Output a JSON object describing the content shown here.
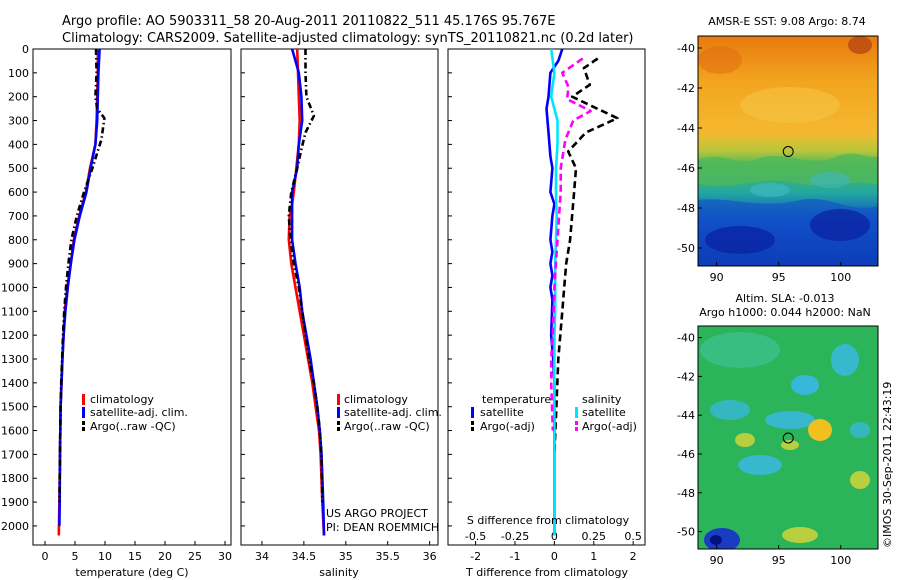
{
  "titles": {
    "line1": "Argo profile: AO 5903311_58 20-Aug-2011 20110822_511 45.176S 95.767E",
    "line2": "Climatology: CARS2009. Satellite-adjusted climatology: synTS_20110821.nc (0.2d later)"
  },
  "footer": {
    "project": "US ARGO PROJECT",
    "pi": "PI: DEAN ROEMMICH",
    "credit": "©IMOS 30-Sep-2011 22:43:19"
  },
  "colors": {
    "climatology": "#ff0000",
    "satellite": "#0000ff",
    "argo": "#000000",
    "salinity_satellite": "#00e5ff",
    "salinity_argo": "#ff00ff"
  },
  "chart_data": [
    {
      "type": "line",
      "xlabel": "temperature (deg C)",
      "ylabel": "",
      "xlim": [
        -2,
        31
      ],
      "ylim": [
        2080,
        0
      ],
      "xticks": [
        "0",
        "5",
        "10",
        "15",
        "20",
        "25",
        "30"
      ],
      "xtick_values": [
        0,
        5,
        10,
        15,
        20,
        25,
        30
      ],
      "yticks": [
        "0",
        "100",
        "200",
        "300",
        "400",
        "500",
        "600",
        "700",
        "800",
        "900",
        "1000",
        "1100",
        "1200",
        "1300",
        "1400",
        "1500",
        "1600",
        "1700",
        "1800",
        "1900",
        "2000"
      ],
      "legend": [
        "climatology",
        "satellite-adj. clim.",
        "Argo(..raw -QC)"
      ],
      "series": [
        {
          "name": "climatology",
          "color": "#ff0000",
          "dash": "",
          "x": [
            8.8,
            8.8,
            8.7,
            8.6,
            8.5,
            8.4,
            7.5,
            6.8,
            5.7,
            4.8,
            4.3,
            3.7,
            3.3,
            3.1,
            2.9,
            2.75,
            2.6,
            2.55,
            2.5,
            2.4,
            2.3
          ],
          "y": [
            0,
            100,
            200,
            300,
            350,
            400,
            500,
            600,
            700,
            800,
            900,
            1000,
            1100,
            1200,
            1300,
            1400,
            1500,
            1600,
            1700,
            1900,
            2040
          ]
        },
        {
          "name": "satellite-adj. clim.",
          "color": "#0000ff",
          "dash": "",
          "x": [
            9.1,
            9.0,
            8.9,
            8.8,
            8.7,
            8.4,
            7.6,
            6.9,
            5.8,
            4.9,
            4.3,
            3.8,
            3.4,
            3.1,
            2.9,
            2.75,
            2.6,
            2.55,
            2.5,
            2.45,
            2.4
          ],
          "y": [
            0,
            50,
            100,
            200,
            300,
            400,
            500,
            600,
            700,
            800,
            900,
            1000,
            1100,
            1200,
            1300,
            1400,
            1500,
            1600,
            1700,
            1900,
            2000
          ]
        },
        {
          "name": "Argo(..raw -QC)",
          "color": "#000000",
          "dash": "6,3,1.5,3",
          "x": [
            8.5,
            8.6,
            8.4,
            8.7,
            9.9,
            9.4,
            7.9,
            6.5,
            5.3,
            4.4,
            3.9,
            3.5,
            3.2,
            3.0,
            2.85,
            2.7,
            2.6,
            2.55,
            2.5,
            2.4
          ],
          "y": [
            0,
            100,
            200,
            250,
            290,
            380,
            500,
            600,
            700,
            800,
            900,
            1000,
            1100,
            1200,
            1300,
            1400,
            1500,
            1600,
            1700,
            1900
          ]
        }
      ]
    },
    {
      "type": "line",
      "xlabel": "salinity",
      "ylabel": "",
      "xlim": [
        33.75,
        36.1
      ],
      "ylim": [
        2080,
        0
      ],
      "xticks": [
        "34",
        "34.5",
        "35",
        "35.5",
        "36"
      ],
      "xtick_values": [
        34,
        34.5,
        35,
        35.5,
        36
      ],
      "legend": [
        "climatology",
        "satellite-adj. clim.",
        "Argo(..raw -QC)"
      ],
      "series": [
        {
          "name": "climatology",
          "color": "#ff0000",
          "dash": "",
          "x": [
            34.42,
            34.43,
            34.44,
            34.45,
            34.44,
            34.41,
            34.38,
            34.36,
            34.33,
            34.32,
            34.35,
            34.4,
            34.45,
            34.5,
            34.55,
            34.6,
            34.64,
            34.68,
            34.7,
            34.72,
            34.74
          ],
          "y": [
            0,
            100,
            200,
            300,
            400,
            500,
            600,
            650,
            700,
            800,
            900,
            1000,
            1100,
            1200,
            1300,
            1400,
            1500,
            1600,
            1700,
            1900,
            2040
          ]
        },
        {
          "name": "satellite-adj. clim.",
          "color": "#0000ff",
          "dash": "",
          "x": [
            34.36,
            34.4,
            34.44,
            34.47,
            34.48,
            34.44,
            34.42,
            34.36,
            34.36,
            34.36,
            34.4,
            34.45,
            34.48,
            34.53,
            34.58,
            34.62,
            34.66,
            34.69,
            34.71,
            34.73,
            34.74
          ],
          "y": [
            0,
            50,
            100,
            200,
            300,
            400,
            500,
            600,
            700,
            800,
            900,
            1000,
            1100,
            1200,
            1300,
            1400,
            1500,
            1600,
            1700,
            1900,
            2040
          ]
        },
        {
          "name": "Argo(..raw -QC)",
          "color": "#000000",
          "dash": "6,3,1.5,3",
          "x": [
            34.52,
            34.52,
            34.53,
            34.62,
            34.52,
            34.47,
            34.42,
            34.35,
            34.32,
            34.34,
            34.38,
            34.44,
            34.48,
            34.52,
            34.56,
            34.62,
            34.66,
            34.69,
            34.71,
            34.72
          ],
          "y": [
            0,
            100,
            200,
            280,
            350,
            420,
            500,
            600,
            700,
            800,
            900,
            1000,
            1100,
            1200,
            1300,
            1400,
            1500,
            1600,
            1700,
            1900
          ]
        }
      ]
    },
    {
      "type": "line",
      "xlabel": "T difference from climatology",
      "xlabel_top": "S difference from climatology",
      "ylabel": "",
      "xlim": [
        -2.7,
        2.3
      ],
      "ylim": [
        2080,
        0
      ],
      "xticks": [
        "-2",
        "-1",
        "0",
        "1",
        "2"
      ],
      "xtick_values": [
        -2,
        -1,
        0,
        1,
        2
      ],
      "s_xticks": [
        "-0.5",
        "-0.25",
        "0",
        "0.25",
        "0.5"
      ],
      "s_xtick_values": [
        -0.5,
        -0.25,
        0,
        0.25,
        0.5
      ],
      "legend_headers": [
        "temperature",
        "salinity"
      ],
      "legend": [
        "satellite",
        "Argo(-adj)",
        "satellite",
        "Argo(-adj)"
      ],
      "series": [
        {
          "name": "satellite",
          "group": "temperature",
          "color": "#0000ff",
          "dash": "",
          "unit": "T",
          "x": [
            0.2,
            0.1,
            -0.1,
            -0.15,
            -0.2,
            -0.15,
            -0.1,
            -0.05,
            -0.1,
            0.0,
            -0.05,
            -0.1,
            -0.05,
            -0.1,
            -0.05,
            -0.1,
            -0.05,
            -0.08,
            -0.03,
            0.0,
            0.0,
            0.0,
            0.0,
            0.0
          ],
          "y": [
            0,
            50,
            100,
            200,
            250,
            350,
            450,
            500,
            600,
            650,
            700,
            800,
            850,
            900,
            950,
            1000,
            1050,
            1200,
            1300,
            1400,
            1500,
            1700,
            1900,
            2040
          ]
        },
        {
          "name": "Argo(-adj)",
          "group": "temperature",
          "color": "#000000",
          "dash": "7,4",
          "unit": "T",
          "x": [
            1.1,
            0.75,
            0.9,
            0.45,
            1.6,
            0.8,
            0.35,
            0.55,
            0.5,
            0.45,
            0.4,
            0.3,
            0.25,
            0.2,
            0.15,
            0.1,
            0.05,
            0.0
          ],
          "y": [
            40,
            80,
            150,
            200,
            290,
            350,
            430,
            500,
            600,
            700,
            800,
            900,
            1000,
            1100,
            1200,
            1300,
            1500,
            1700
          ]
        },
        {
          "name": "satellite",
          "group": "salinity",
          "color": "#00e5ff",
          "dash": "",
          "unit": "S",
          "x": [
            -0.02,
            0.0,
            -0.02,
            0.02,
            0.02,
            0.01,
            0.01,
            0.015,
            0.01,
            0.005,
            0.005,
            0.005,
            0.0,
            0.0,
            0.0,
            0.0,
            0.0
          ],
          "y": [
            0,
            100,
            200,
            300,
            400,
            500,
            600,
            700,
            800,
            900,
            1000,
            1100,
            1200,
            1400,
            1600,
            1800,
            2040
          ]
        },
        {
          "name": "Argo(-adj)",
          "group": "salinity",
          "color": "#ff00ff",
          "dash": "7,4",
          "unit": "S",
          "x": [
            0.18,
            0.05,
            0.09,
            0.08,
            0.23,
            0.12,
            0.07,
            0.04,
            0.04,
            0.03,
            0.02,
            0.0,
            -0.01,
            -0.02,
            -0.02,
            -0.01
          ],
          "y": [
            40,
            100,
            160,
            210,
            260,
            300,
            380,
            500,
            600,
            700,
            800,
            1000,
            1200,
            1300,
            1400,
            1600
          ]
        }
      ]
    },
    {
      "type": "heatmap",
      "title": "AMSR-E SST: 9.08 Argo: 8.74",
      "xlim": [
        88.5,
        103
      ],
      "ylim": [
        -50.9,
        -39.4
      ],
      "xticks": [
        "90",
        "95",
        "100"
      ],
      "xtick_values": [
        90,
        95,
        100
      ],
      "yticks": [
        "-40",
        "-42",
        "-44",
        "-46",
        "-48",
        "-50"
      ],
      "ytick_values": [
        -40,
        -42,
        -44,
        -46,
        -48,
        -50
      ],
      "marker": {
        "lon": 95.767,
        "lat": -45.176
      }
    },
    {
      "type": "heatmap",
      "title": "Altim. SLA: -0.013",
      "subtitle": "Argo h1000: 0.044 h2000: NaN",
      "xlim": [
        88.5,
        103
      ],
      "ylim": [
        -50.9,
        -39.4
      ],
      "xticks": [
        "90",
        "95",
        "100"
      ],
      "xtick_values": [
        90,
        95,
        100
      ],
      "yticks": [
        "-40",
        "-42",
        "-44",
        "-46",
        "-48",
        "-50"
      ],
      "ytick_values": [
        -40,
        -42,
        -44,
        -46,
        -48,
        -50
      ],
      "marker": {
        "lon": 95.767,
        "lat": -45.176
      }
    }
  ]
}
